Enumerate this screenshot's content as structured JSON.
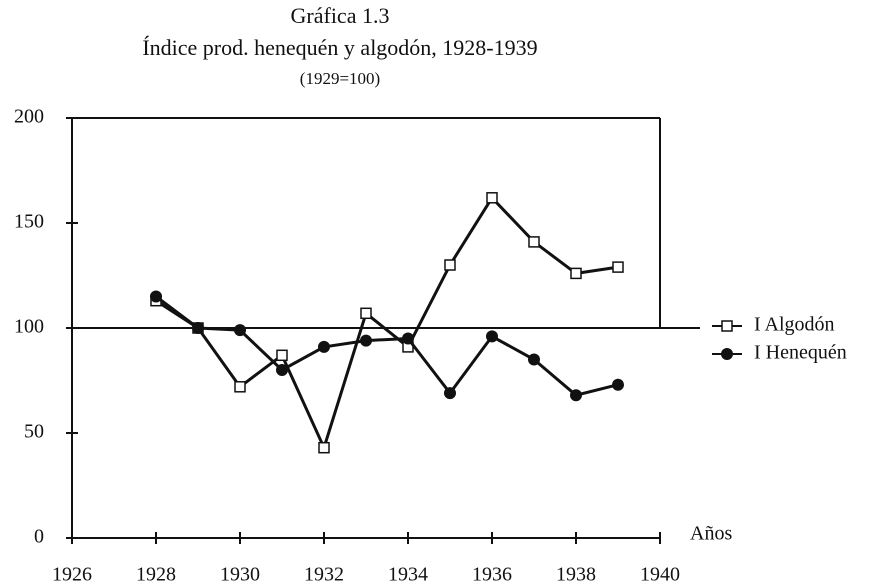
{
  "chart_data": {
    "type": "line",
    "title": "Gráfica 1.3",
    "subtitle": "Índice prod. henequén y algodón, 1928-1939",
    "note": "(1929=100)",
    "x_label": "Años",
    "x": [
      1928,
      1929,
      1930,
      1931,
      1932,
      1933,
      1934,
      1935,
      1936,
      1937,
      1938,
      1939
    ],
    "series": [
      {
        "name": "I Algodón",
        "color": "#111",
        "marker": "square",
        "values": [
          113,
          100,
          72,
          87,
          43,
          107,
          91,
          130,
          162,
          141,
          126,
          129
        ]
      },
      {
        "name": "I Henequén",
        "color": "#111",
        "marker": "diamond",
        "values": [
          115,
          100,
          99,
          80,
          91,
          94,
          95,
          69,
          96,
          85,
          68,
          73
        ]
      }
    ],
    "xlim": [
      1926,
      1940
    ],
    "xticks": [
      1926,
      1928,
      1930,
      1932,
      1934,
      1936,
      1938,
      1940
    ],
    "ylim": [
      0,
      200
    ],
    "yticks": [
      0,
      50,
      100,
      150,
      200
    ],
    "hline": 100,
    "legend": "right"
  }
}
